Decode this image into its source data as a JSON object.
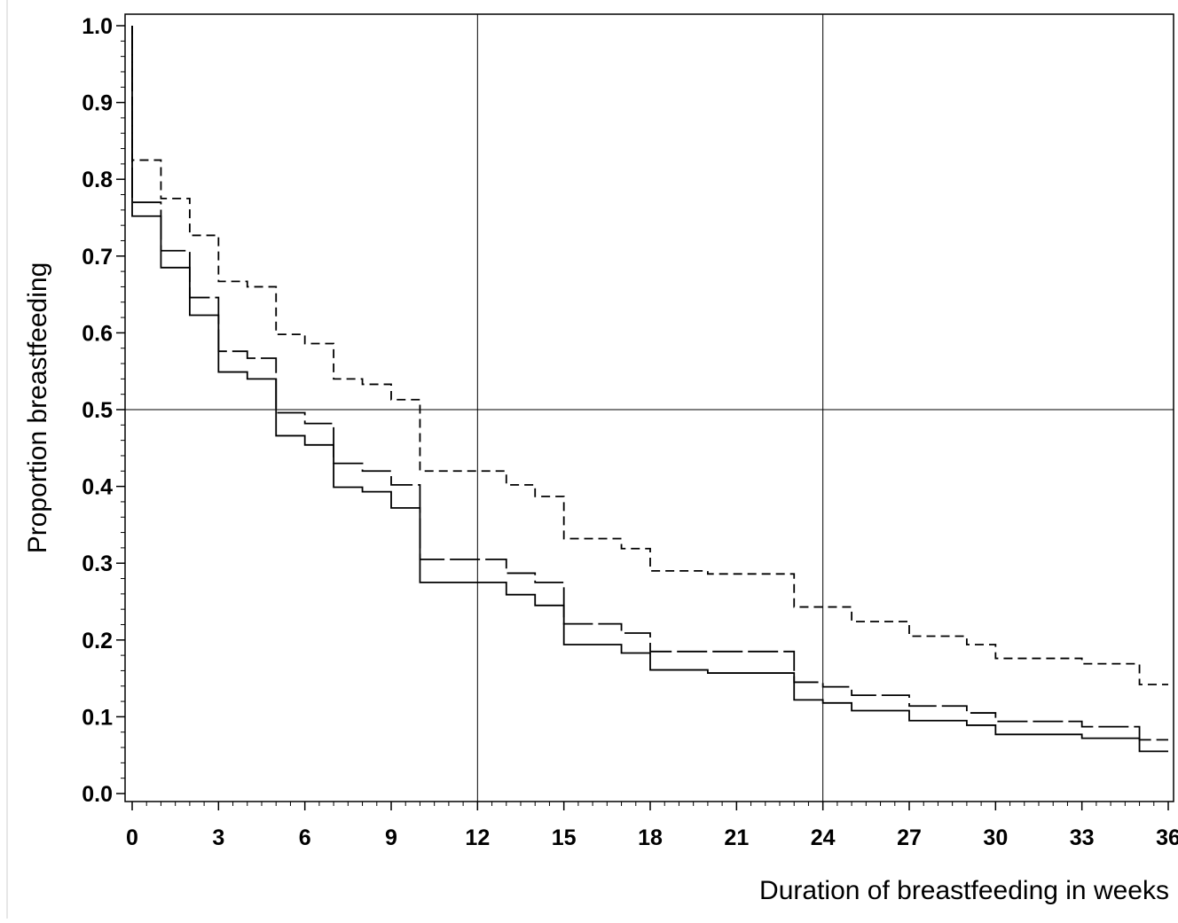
{
  "chart_data": {
    "type": "line",
    "subtype": "step",
    "title": "",
    "xlabel": "Duration of breastfeeding in weeks",
    "ylabel": "Proportion breastfeeding",
    "xlim": [
      0,
      36
    ],
    "ylim": [
      0,
      1
    ],
    "x_ticks": [
      "0",
      "3",
      "6",
      "9",
      "12",
      "15",
      "18",
      "21",
      "24",
      "27",
      "30",
      "33",
      "36"
    ],
    "y_ticks": [
      "0.0",
      "0.1",
      "0.2",
      "0.3",
      "0.4",
      "0.5",
      "0.6",
      "0.7",
      "0.8",
      "0.9",
      "1.0"
    ],
    "reference_lines": {
      "x": [
        12,
        24
      ],
      "y": [
        0.5
      ]
    },
    "grid": false,
    "legend": "none",
    "series": [
      {
        "line_style": "dashed-short",
        "x": [
          0,
          1,
          2,
          3,
          4,
          5,
          6,
          7,
          8,
          9,
          10,
          13,
          14,
          15,
          17,
          18,
          20,
          23,
          25,
          27,
          29,
          30,
          33,
          35,
          36
        ],
        "y": [
          0.825,
          0.775,
          0.727,
          0.667,
          0.66,
          0.598,
          0.586,
          0.54,
          0.533,
          0.513,
          0.42,
          0.402,
          0.387,
          0.332,
          0.319,
          0.29,
          0.286,
          0.243,
          0.224,
          0.205,
          0.194,
          0.176,
          0.169,
          0.142,
          0.142
        ]
      },
      {
        "line_style": "dashed-long",
        "x": [
          0,
          1,
          2,
          3,
          4,
          5,
          6,
          7,
          8,
          9,
          10,
          13,
          14,
          15,
          17,
          18,
          23,
          24,
          25,
          27,
          29,
          30,
          33,
          35,
          36
        ],
        "y": [
          0.77,
          0.707,
          0.646,
          0.576,
          0.567,
          0.496,
          0.482,
          0.43,
          0.42,
          0.402,
          0.305,
          0.287,
          0.275,
          0.221,
          0.209,
          0.185,
          0.145,
          0.139,
          0.128,
          0.114,
          0.105,
          0.094,
          0.087,
          0.07,
          0.07
        ]
      },
      {
        "line_style": "solid",
        "x": [
          0,
          1,
          2,
          3,
          4,
          5,
          6,
          7,
          8,
          9,
          10,
          13,
          14,
          15,
          17,
          18,
          20,
          23,
          24,
          25,
          27,
          29,
          30,
          33,
          35,
          36
        ],
        "y": [
          0.752,
          0.685,
          0.623,
          0.549,
          0.54,
          0.466,
          0.454,
          0.399,
          0.393,
          0.372,
          0.275,
          0.259,
          0.245,
          0.194,
          0.183,
          0.161,
          0.157,
          0.122,
          0.118,
          0.108,
          0.095,
          0.089,
          0.077,
          0.072,
          0.055,
          0.055
        ]
      }
    ]
  }
}
